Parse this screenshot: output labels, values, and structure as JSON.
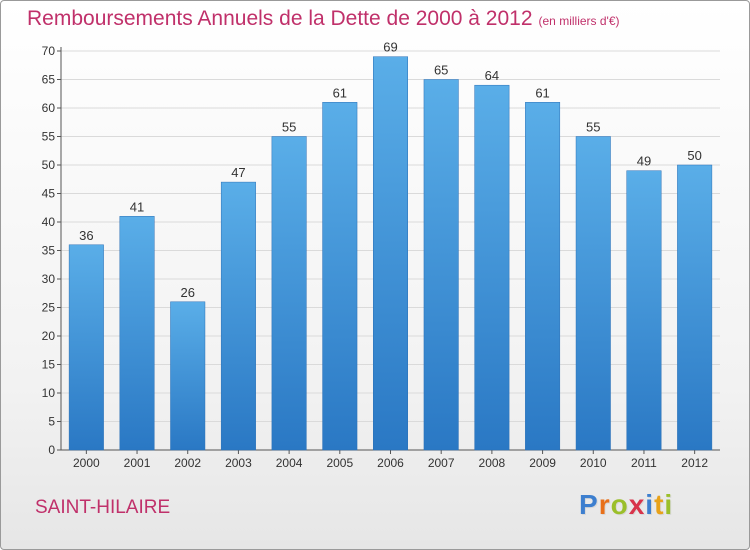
{
  "chart_data": {
    "type": "bar",
    "title": "Remboursements Annuels de la Dette de 2000 à 2012",
    "subtitle": "(en milliers d'€)",
    "categories": [
      "2000",
      "2001",
      "2002",
      "2003",
      "2004",
      "2005",
      "2006",
      "2007",
      "2008",
      "2009",
      "2010",
      "2011",
      "2012"
    ],
    "values": [
      36,
      41,
      26,
      47,
      55,
      61,
      69,
      65,
      64,
      61,
      55,
      49,
      50
    ],
    "ylim": [
      0,
      70
    ],
    "yticks": [
      0,
      5,
      10,
      15,
      20,
      25,
      30,
      35,
      40,
      45,
      50,
      55,
      60,
      65,
      70
    ],
    "grid": true,
    "bar_color": "#3a8fd8"
  },
  "footer": {
    "commune": "SAINT-HILAIRE",
    "logo_letters": [
      "P",
      "r",
      "o",
      "x",
      "i",
      "t",
      "i"
    ],
    "logo_colors": [
      "#3d7fcf",
      "#e8701a",
      "#9bbf2a",
      "#d8344b",
      "#3d7fcf",
      "#e8a21a",
      "#9bbf2a"
    ]
  }
}
